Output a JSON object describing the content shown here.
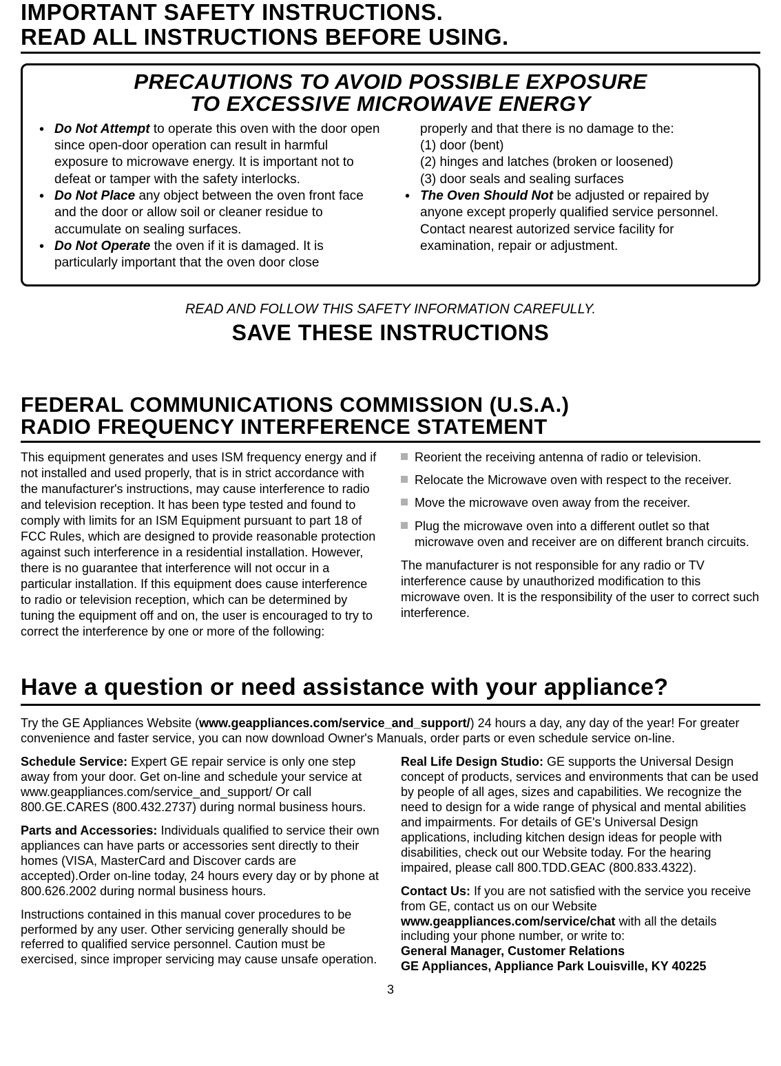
{
  "header": {
    "line1": "IMPORTANT SAFETY INSTRUCTIONS.",
    "line2": "READ ALL INSTRUCTIONS BEFORE USING."
  },
  "precautions": {
    "heading_line1": "PRECAUTIONS TO AVOID POSSIBLE EXPOSURE",
    "heading_line2": "TO EXCESSIVE MICROWAVE ENERGY",
    "b1_lead": "Do Not Attempt",
    "b1_rest": "  to operate this oven with the door open since open-door operation can result in harmful exposure to microwave energy. It is important not to defeat or tamper with the safety interlocks.",
    "b2_lead": "Do Not Place",
    "b2_rest": "  any object between the oven front face and the door or allow soil or cleaner residue to accumulate on sealing surfaces.",
    "b3_lead": "Do Not Operate",
    "b3_rest": "  the oven if it is damaged. It is particularly important that the oven door close",
    "cont_line0": "properly and that there is no damage to the:",
    "cont_line1": "(1) door (bent)",
    "cont_line2": "(2) hinges and latches (broken or loosened)",
    "cont_line3": "(3) door seals and sealing surfaces",
    "b4_lead": "The Oven Should Not",
    "b4_rest": "  be adjusted or repaired by anyone except properly qualified service personnel. Contact nearest autorized service facility for examination, repair or adjustment."
  },
  "mid": {
    "read_follow": "READ AND FOLLOW THIS SAFETY INFORMATION CAREFULLY.",
    "save": "SAVE THESE INSTRUCTIONS"
  },
  "fcc": {
    "heading_l1": "FEDERAL COMMUNICATIONS COMMISSION (U.S.A.)",
    "heading_l2": "RADIO FREQUENCY INTERFERENCE STATEMENT",
    "para": "This equipment generates and uses ISM frequency energy and if not installed and used properly, that is in strict accordance with the manufacturer's instructions, may cause interference to radio and television reception.  It has been type tested and found to comply with limits for an ISM Equipment pursuant to part 18 of FCC Rules, which are designed to provide reasonable protection against such interference in a residential installation.  However, there is no guarantee that interference will not occur in a particular installation.  If this equipment does cause interference to radio or television reception, which can be determined by tuning the equipment off and on, the user is encouraged to try to correct the interference by one or more of the following:",
    "s1": "Reorient the receiving antenna of radio or television.",
    "s2": "Relocate the Microwave oven with respect to the receiver.",
    "s3": "Move the microwave oven away from the receiver.",
    "s4": "Plug the microwave oven into a different outlet so that microwave oven and receiver are on different branch circuits.",
    "disclaimer": "The manufacturer is not responsible for any radio or TV interference cause by unauthorized modification to this microwave oven.  It is the responsibility of the user to correct such interference."
  },
  "support": {
    "heading": "Have a question or need assistance with your appliance?",
    "intro_pre": "Try the GE Appliances Website (",
    "intro_url": "www.geappliances.com/service_and_support/",
    "intro_post": ") 24 hours a day, any day of the year! For greater convenience and faster service, you can now download Owner's Manuals, order parts or even schedule service on-line.",
    "schedule_lead": "Schedule Service:",
    "schedule_body": " Expert GE repair service is only one step away from your door. Get on-line and schedule your service at www.geappliances.com/service_and_support/ Or call 800.GE.CARES (800.432.2737) during normal business hours.",
    "parts_lead": "Parts and Accessories:",
    "parts_body": " Individuals qualified to service their own appliances can have parts or accessories sent directly to their homes (VISA, MasterCard and Discover cards are accepted).Order on-line today, 24 hours every day or by phone at 800.626.2002 during normal business hours.",
    "manual_note": "Instructions contained in this manual cover procedures to be performed by any user. Other servicing generally should be referred to qualified service personnel. Caution must be exercised, since improper servicing may cause unsafe operation.",
    "design_lead": "Real Life Design Studio:",
    "design_body": " GE supports the Universal Design concept of products, services and environments that can be used by people of all ages, sizes and capabilities. We recognize the need to design for a wide range of physical and mental abilities and impairments. For details of GE's Universal Design applications, including kitchen design ideas for people with disabilities, check out our Website today. For the hearing impaired, please call 800.TDD.GEAC (800.833.4322).",
    "contact_lead": "Contact Us:",
    "contact_body1": " If you are not satisfied with the service you receive from GE, contact us on our Website",
    "contact_url": "www.geappliances.com/service/chat",
    "contact_body2": " with all the details including your phone number, or write to:",
    "contact_addr1": "General Manager, Customer Relations",
    "contact_addr2": "GE Appliances, Appliance Park Louisville, KY 40225"
  },
  "page_number": "3"
}
